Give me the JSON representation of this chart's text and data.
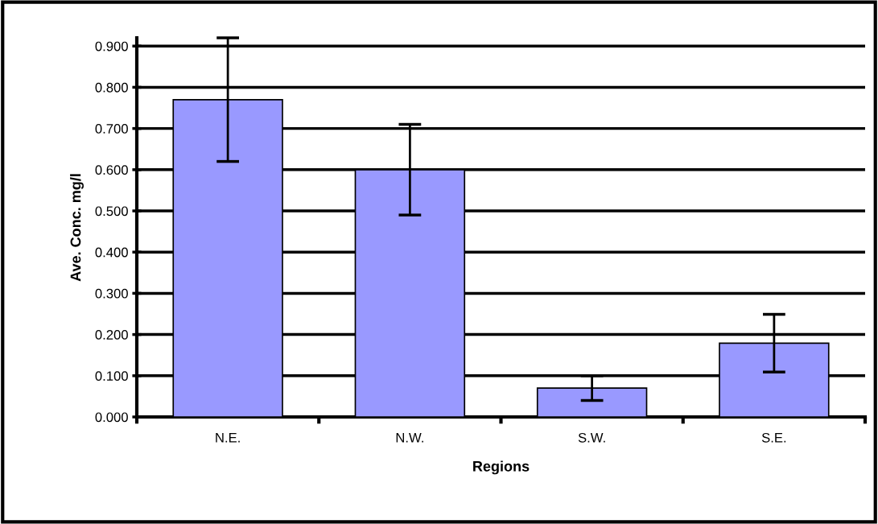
{
  "chart_data": {
    "type": "bar",
    "xlabel": "Regions",
    "ylabel": "Ave. Conc. mg/l",
    "categories": [
      "N.E.",
      "N.W.",
      "S.W.",
      "S.E."
    ],
    "values": [
      0.77,
      0.6,
      0.07,
      0.179
    ],
    "errors": [
      0.15,
      0.11,
      0.03,
      0.07
    ],
    "color": "#9999ff",
    "ylim": [
      0,
      0.92
    ],
    "yticks": [
      {
        "value": 0,
        "label": "0.000"
      },
      {
        "value": 0.1,
        "label": "0.100"
      },
      {
        "value": 0.2,
        "label": "0.200"
      },
      {
        "value": 0.3,
        "label": "0.300"
      },
      {
        "value": 0.4,
        "label": "0.400"
      },
      {
        "value": 0.5,
        "label": "0.500"
      },
      {
        "value": 0.6,
        "label": "0.600"
      },
      {
        "value": 0.7,
        "label": "0.700"
      },
      {
        "value": 0.8,
        "label": "0.800"
      },
      {
        "value": 0.9,
        "label": "0.900"
      }
    ],
    "grid": "y"
  }
}
